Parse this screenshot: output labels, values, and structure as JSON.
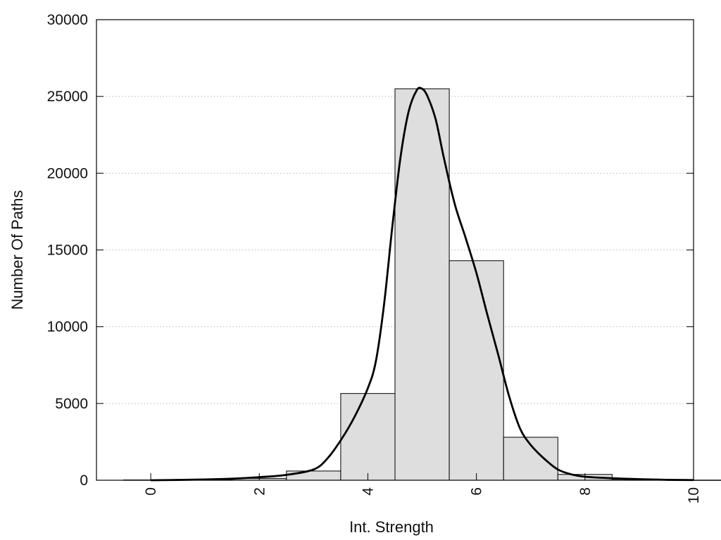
{
  "chart_data": {
    "type": "bar",
    "title": "",
    "xlabel": "Int. Strength",
    "ylabel": "Number Of Paths",
    "xlim": [
      -1,
      10
    ],
    "ylim": [
      0,
      30000
    ],
    "x_ticks": [
      0,
      2,
      4,
      6,
      8,
      10
    ],
    "x_tick_labels": [
      "0",
      "2",
      "4",
      "6",
      "8",
      "10"
    ],
    "y_ticks": [
      0,
      5000,
      10000,
      15000,
      20000,
      25000,
      30000
    ],
    "y_tick_labels": [
      "0",
      "5000",
      "10000",
      "15000",
      "20000",
      "25000",
      "30000"
    ],
    "grid": "horizontal-dotted",
    "bar_width": 1,
    "bars": [
      {
        "x": 0,
        "value": 20
      },
      {
        "x": 1,
        "value": 50
      },
      {
        "x": 2,
        "value": 120
      },
      {
        "x": 3,
        "value": 600
      },
      {
        "x": 4,
        "value": 5650
      },
      {
        "x": 5,
        "value": 25500
      },
      {
        "x": 6,
        "value": 14300
      },
      {
        "x": 7,
        "value": 2800
      },
      {
        "x": 8,
        "value": 380
      },
      {
        "x": 9,
        "value": 60
      },
      {
        "x": 10,
        "value": 10
      }
    ],
    "curve": {
      "type": "line",
      "x": [
        0,
        0.5,
        1,
        1.5,
        2,
        2.5,
        3,
        3.25,
        3.5,
        3.75,
        4,
        4.15,
        4.3,
        4.45,
        4.6,
        4.75,
        4.9,
        5,
        5.1,
        5.25,
        5.4,
        5.6,
        5.8,
        6,
        6.2,
        6.4,
        6.6,
        6.8,
        7,
        7.25,
        7.5,
        7.75,
        8,
        8.5,
        9,
        9.5,
        10
      ],
      "y": [
        0,
        20,
        50,
        100,
        200,
        350,
        700,
        1400,
        2600,
        4100,
        6000,
        7800,
        11500,
        16500,
        21000,
        24000,
        25400,
        25500,
        25000,
        23500,
        21000,
        18000,
        15800,
        13500,
        10800,
        8200,
        5500,
        3400,
        2300,
        1400,
        700,
        380,
        230,
        130,
        70,
        30,
        10
      ]
    },
    "bar_fill": "#dedede",
    "bar_stroke": "#000000",
    "curve_color": "#000000",
    "grid_color": "#bbbbbb"
  }
}
